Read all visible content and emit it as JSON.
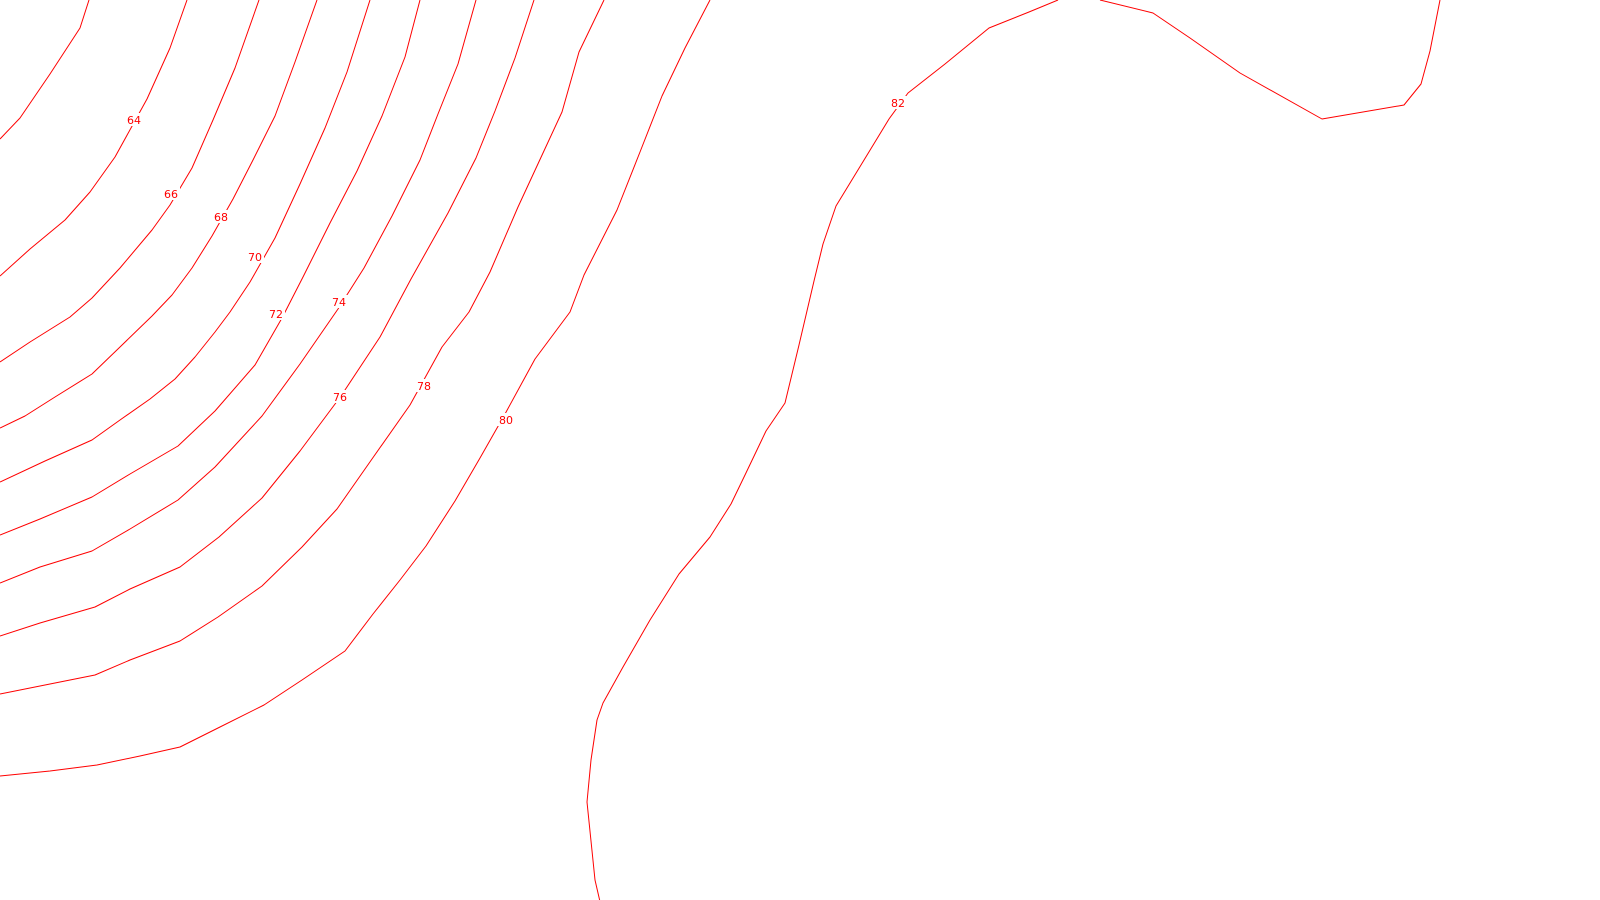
{
  "map": {
    "line_color": "#ff0000",
    "background": "#ffffff",
    "contours": [
      {
        "id": "c64",
        "label": "64"
      },
      {
        "id": "c66",
        "label": "66"
      },
      {
        "id": "c68",
        "label": "68"
      },
      {
        "id": "c70",
        "label": "70"
      },
      {
        "id": "c72",
        "label": "72"
      },
      {
        "id": "c74",
        "label": "74"
      },
      {
        "id": "c76",
        "label": "76"
      },
      {
        "id": "c78",
        "label": "78"
      },
      {
        "id": "c80",
        "label": "80"
      },
      {
        "id": "c82",
        "label": "82"
      }
    ]
  }
}
